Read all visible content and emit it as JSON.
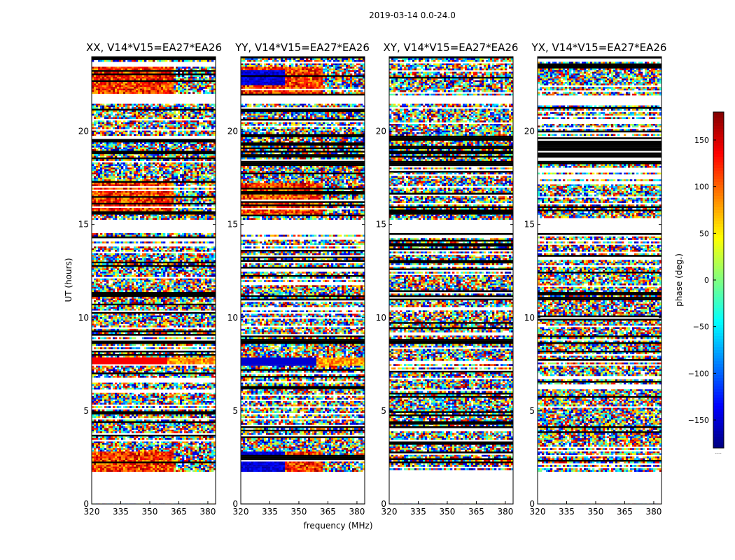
{
  "chart_data": {
    "type": "heatmap",
    "suptitle": "2019-03-14 0.0-24.0",
    "panels": [
      {
        "title": "XX, V14*V15=EA27*EA26",
        "seed": 11,
        "warm_top": true
      },
      {
        "title": "YY, V14*V15=EA27*EA26",
        "seed": 23,
        "warm_top": true
      },
      {
        "title": "XY, V14*V15=EA27*EA26",
        "seed": 37,
        "warm_top": false
      },
      {
        "title": "YX, V14*V15=EA27*EA26",
        "seed": 53,
        "warm_top": false
      }
    ],
    "xlabel": "frequency (MHz)",
    "ylabel": "UT (hours)",
    "xlim": [
      320,
      384
    ],
    "ylim": [
      0,
      24
    ],
    "xticks": [
      "320",
      "335",
      "350",
      "365",
      "380"
    ],
    "xtick_values": [
      320,
      335,
      350,
      365,
      380
    ],
    "yticks": [
      "0",
      "5",
      "10",
      "15",
      "20"
    ],
    "ytick_values": [
      0,
      5,
      10,
      15,
      20
    ],
    "colorbar": {
      "label": "phase (deg.)",
      "range": [
        -180,
        180
      ],
      "ticks": [
        "150",
        "100",
        "50",
        "0",
        "−50",
        "−100",
        "−150"
      ],
      "tick_values": [
        150,
        100,
        50,
        0,
        -50,
        -100,
        -150
      ],
      "colormap": "jet",
      "note": "....."
    },
    "empty_bands_ut": [
      [
        0,
        1.75
      ],
      [
        14.5,
        15.3
      ],
      [
        21.5,
        21.9
      ]
    ],
    "flagged_bands_ut": [
      [
        8.6,
        8.9
      ],
      [
        10.8,
        11.4
      ],
      [
        18.2,
        19.8
      ]
    ]
  }
}
